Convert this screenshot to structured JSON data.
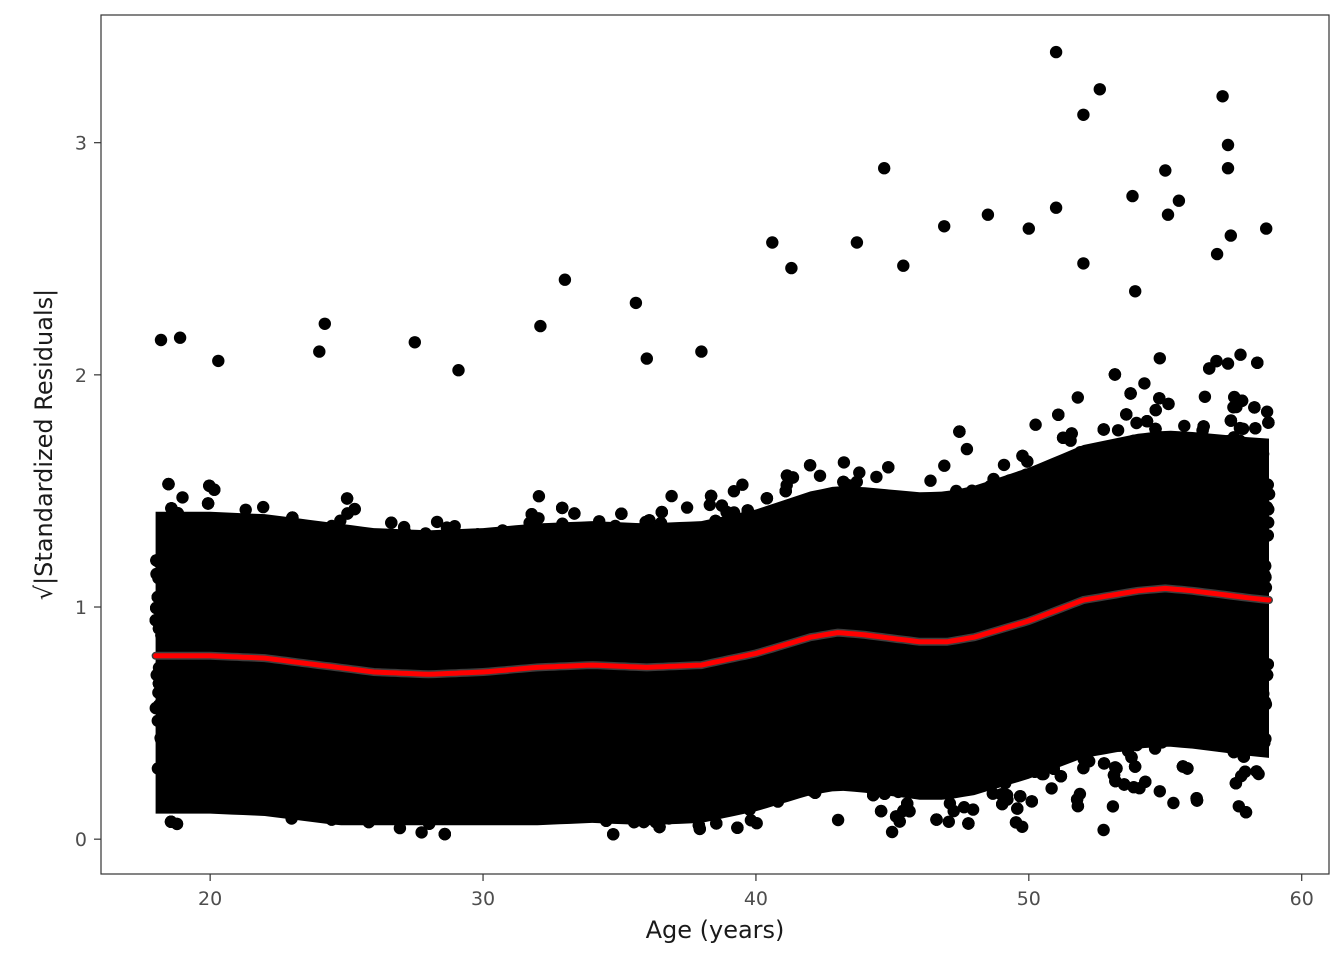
{
  "chart_data": {
    "type": "scatter",
    "title": "",
    "xlabel": "Age (years)",
    "ylabel": "√|Standardized Residuals|",
    "xlim": [
      16,
      61
    ],
    "ylim": [
      -0.15,
      3.55
    ],
    "x_ticks": [
      20,
      30,
      40,
      50,
      60
    ],
    "y_ticks": [
      0,
      1,
      2,
      3
    ],
    "grid": false,
    "legend": "none",
    "point_color": "#000000",
    "smooth_color": "#ff0000",
    "smooth_band_color": "#3d3d3d",
    "outliers": [
      {
        "x": 51.0,
        "y": 3.39
      },
      {
        "x": 52.6,
        "y": 3.23
      },
      {
        "x": 57.1,
        "y": 3.2
      },
      {
        "x": 52.0,
        "y": 3.12
      },
      {
        "x": 57.3,
        "y": 2.99
      },
      {
        "x": 57.3,
        "y": 2.89
      },
      {
        "x": 44.7,
        "y": 2.89
      },
      {
        "x": 55.0,
        "y": 2.88
      },
      {
        "x": 53.8,
        "y": 2.77
      },
      {
        "x": 51.0,
        "y": 2.72
      },
      {
        "x": 58.7,
        "y": 2.63
      },
      {
        "x": 55.5,
        "y": 2.75
      },
      {
        "x": 55.1,
        "y": 2.69
      },
      {
        "x": 50.0,
        "y": 2.63
      },
      {
        "x": 46.9,
        "y": 2.64
      },
      {
        "x": 48.5,
        "y": 2.69
      },
      {
        "x": 33.0,
        "y": 2.41
      },
      {
        "x": 35.6,
        "y": 2.31
      },
      {
        "x": 40.6,
        "y": 2.57
      },
      {
        "x": 43.7,
        "y": 2.57
      },
      {
        "x": 24.2,
        "y": 2.22
      },
      {
        "x": 32.1,
        "y": 2.21
      },
      {
        "x": 18.9,
        "y": 2.16
      },
      {
        "x": 18.2,
        "y": 2.15
      },
      {
        "x": 57.4,
        "y": 2.6
      },
      {
        "x": 56.9,
        "y": 2.52
      },
      {
        "x": 52.0,
        "y": 2.48
      },
      {
        "x": 53.9,
        "y": 2.36
      },
      {
        "x": 45.4,
        "y": 2.47
      },
      {
        "x": 41.3,
        "y": 2.46
      },
      {
        "x": 27.5,
        "y": 2.14
      },
      {
        "x": 38.0,
        "y": 2.1
      },
      {
        "x": 29.1,
        "y": 2.02
      },
      {
        "x": 20.3,
        "y": 2.06
      },
      {
        "x": 24.0,
        "y": 2.1
      },
      {
        "x": 36.0,
        "y": 2.07
      }
    ],
    "smooth_curve": {
      "x": [
        18,
        20,
        22,
        24,
        26,
        28,
        30,
        32,
        34,
        36,
        38,
        40,
        42,
        43,
        44,
        46,
        47,
        48,
        50,
        52,
        54,
        55,
        56,
        58,
        58.8
      ],
      "y": [
        0.79,
        0.79,
        0.78,
        0.75,
        0.72,
        0.71,
        0.72,
        0.74,
        0.75,
        0.74,
        0.75,
        0.8,
        0.87,
        0.89,
        0.88,
        0.85,
        0.85,
        0.87,
        0.94,
        1.03,
        1.07,
        1.08,
        1.07,
        1.04,
        1.03
      ]
    }
  }
}
